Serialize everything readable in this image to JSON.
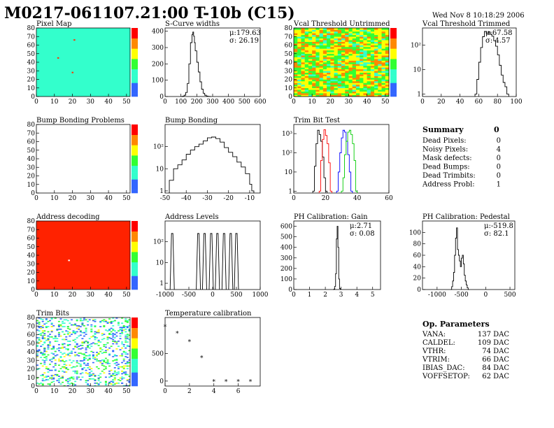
{
  "header": {
    "title": "M0217-061107.21:00 T-10b (C15)",
    "date": "Wed Nov  8 10:18:29 2006"
  },
  "summary": {
    "title": "Summary",
    "value": "0",
    "rows": [
      {
        "label": "Dead Pixels:",
        "value": "0"
      },
      {
        "label": "Noisy Pixels:",
        "value": "4"
      },
      {
        "label": "Mask defects:",
        "value": "0"
      },
      {
        "label": "Dead Bumps:",
        "value": "0"
      },
      {
        "label": "Dead Trimbits:",
        "value": "0"
      },
      {
        "label": "Address Probl:",
        "value": "1"
      }
    ]
  },
  "op_params": {
    "title": "Op. Parameters",
    "rows": [
      {
        "label": "VANA:",
        "value": "137 DAC"
      },
      {
        "label": "CALDEL:",
        "value": "109 DAC"
      },
      {
        "label": "VTHR:",
        "value": "74 DAC"
      },
      {
        "label": "VTRIM:",
        "value": "66 DAC"
      },
      {
        "label": "IBIAS_DAC:",
        "value": "84 DAC"
      },
      {
        "label": "VOFFSETOP:",
        "value": "62 DAC"
      }
    ]
  },
  "chart_data": [
    {
      "id": "pixel_map",
      "type": "heatmap",
      "title": "Pixel Map",
      "xlim": [
        0,
        52
      ],
      "ylim": [
        0,
        80
      ],
      "xticks": [
        "0",
        "10",
        "20",
        "30",
        "40",
        "50"
      ],
      "yticks": [
        "0",
        "10",
        "20",
        "30",
        "40",
        "50",
        "60",
        "70",
        "80"
      ],
      "fill": "#33ffcc",
      "colorbar": true,
      "palette": "rainbow",
      "points": [
        {
          "x": 21,
          "y": 66
        },
        {
          "x": 20,
          "y": 28
        },
        {
          "x": 12,
          "y": 45
        }
      ]
    },
    {
      "id": "scurve_widths",
      "type": "line",
      "title": "S-Curve widths",
      "xlim": [
        0,
        600
      ],
      "ylim": [
        0,
        420
      ],
      "xticks": [
        "0",
        "100",
        "200",
        "300",
        "400",
        "500",
        "600"
      ],
      "yticks": [
        "0",
        "100",
        "200",
        "300",
        "400"
      ],
      "stats": {
        "mu": "μ:179.63",
        "sigma": "σ: 26.19"
      },
      "x": [
        100,
        110,
        120,
        130,
        140,
        150,
        160,
        170,
        175,
        180,
        185,
        190,
        200,
        210,
        220,
        230,
        240,
        250,
        260,
        270,
        280
      ],
      "y": [
        0,
        2,
        8,
        25,
        80,
        200,
        330,
        380,
        395,
        370,
        330,
        280,
        210,
        150,
        90,
        45,
        20,
        8,
        3,
        1,
        0
      ]
    },
    {
      "id": "vcal_untrimmed",
      "type": "heatmap",
      "title": "Vcal Threshold Untrimmed",
      "xlim": [
        0,
        52
      ],
      "ylim": [
        0,
        80
      ],
      "xticks": [
        "0",
        "10",
        "20",
        "30",
        "40",
        "50"
      ],
      "yticks": [
        "0",
        "10",
        "20",
        "30",
        "40",
        "50",
        "60",
        "70",
        "80"
      ],
      "colorbar": true,
      "palette": "rainbow",
      "pattern": "noise"
    },
    {
      "id": "vcal_trimmed",
      "type": "line",
      "title": "Vcal Threshold Trimmed",
      "log": true,
      "xlim": [
        0,
        100
      ],
      "ylim": [
        0.8,
        500
      ],
      "xticks": [
        "0",
        "20",
        "40",
        "60",
        "80",
        "100"
      ],
      "yticks": [
        "1",
        "10",
        "10²"
      ],
      "stats": {
        "mu": "μ:67.58",
        "sigma": "σ: 4.57"
      },
      "x": [
        56,
        58,
        60,
        62,
        64,
        66,
        68,
        70,
        72,
        74,
        76,
        78,
        80,
        82,
        84,
        86,
        88,
        90
      ],
      "y": [
        1,
        4,
        20,
        80,
        220,
        360,
        300,
        350,
        280,
        230,
        150,
        90,
        40,
        15,
        6,
        3,
        2,
        1
      ]
    },
    {
      "id": "bump_problems",
      "type": "heatmap",
      "title": "Bump Bonding Problems",
      "xlim": [
        0,
        52
      ],
      "ylim": [
        0,
        80
      ],
      "xticks": [
        "0",
        "10",
        "20",
        "30",
        "40",
        "50"
      ],
      "yticks": [
        "0",
        "10",
        "20",
        "30",
        "40",
        "50",
        "60",
        "70",
        "80"
      ],
      "fill": "#ffffff",
      "colorbar": true,
      "palette": "rainbow"
    },
    {
      "id": "bump_bonding",
      "type": "line",
      "title": "Bump Bonding",
      "log": true,
      "xlim": [
        -50,
        -5
      ],
      "ylim": [
        0.8,
        1000
      ],
      "xticks": [
        "-50",
        "-40",
        "-30",
        "-20",
        "-10"
      ],
      "yticks": [
        "1",
        "10",
        "10²"
      ],
      "x": [
        -48,
        -46,
        -44,
        -42,
        -40,
        -38,
        -36,
        -34,
        -32,
        -30,
        -28,
        -26,
        -24,
        -22,
        -20,
        -18,
        -16,
        -14,
        -12,
        -10,
        -9
      ],
      "y": [
        3,
        10,
        15,
        25,
        45,
        70,
        100,
        130,
        180,
        250,
        270,
        230,
        160,
        90,
        55,
        35,
        20,
        12,
        6,
        2,
        1
      ]
    },
    {
      "id": "trim_bit_test",
      "type": "line",
      "title": "Trim Bit Test",
      "log": true,
      "xlim": [
        0,
        60
      ],
      "ylim": [
        0.8,
        3000
      ],
      "xticks": [
        "0",
        "20",
        "40",
        "60"
      ],
      "yticks": [
        "1",
        "10",
        "10²",
        "10³"
      ],
      "series": [
        {
          "color": "#000000",
          "x": [
            12,
            13,
            14,
            15,
            16,
            17,
            18,
            19,
            20
          ],
          "y": [
            1,
            20,
            300,
            1500,
            900,
            400,
            60,
            5,
            1
          ]
        },
        {
          "color": "#ff0000",
          "x": [
            16,
            17,
            18,
            19,
            20,
            21,
            22,
            23
          ],
          "y": [
            1,
            40,
            500,
            1600,
            800,
            300,
            30,
            1
          ]
        },
        {
          "color": "#0000ff",
          "x": [
            27,
            28,
            29,
            30,
            31,
            32,
            33,
            34,
            35,
            36
          ],
          "y": [
            1,
            10,
            100,
            600,
            1500,
            1200,
            400,
            80,
            10,
            1
          ]
        },
        {
          "color": "#00cc00",
          "x": [
            30,
            31,
            32,
            33,
            34,
            35,
            36,
            37,
            38,
            39
          ],
          "y": [
            1,
            5,
            80,
            400,
            1200,
            1500,
            900,
            300,
            40,
            1
          ]
        }
      ]
    },
    {
      "id": "address_decoding",
      "type": "heatmap",
      "title": "Address decoding",
      "xlim": [
        0,
        52
      ],
      "ylim": [
        0,
        80
      ],
      "xticks": [
        "0",
        "10",
        "20",
        "30",
        "40",
        "50"
      ],
      "yticks": [
        "0",
        "10",
        "20",
        "30",
        "40",
        "50",
        "60",
        "70",
        "80"
      ],
      "fill": "#ff2200",
      "colorbar": true,
      "palette": "rainbow",
      "points": [
        {
          "x": 18,
          "y": 34,
          "color": "#ffffff"
        }
      ]
    },
    {
      "id": "address_levels",
      "type": "line",
      "title": "Address Levels",
      "log": true,
      "xlim": [
        -1000,
        1000
      ],
      "ylim": [
        0.5,
        1000
      ],
      "xticks": [
        "-1000",
        "-500",
        "0",
        "500",
        "1000"
      ],
      "yticks": [
        "1",
        "10",
        "10²"
      ],
      "peaks": [
        -850,
        -300,
        -170,
        -30,
        100,
        240,
        380,
        500
      ],
      "peak_height": 250
    },
    {
      "id": "ph_gain",
      "type": "line",
      "title": "PH Calibration: Gain",
      "xlim": [
        0,
        5.5
      ],
      "ylim": [
        0,
        650
      ],
      "xticks": [
        "0",
        "1",
        "2",
        "3",
        "4",
        "5"
      ],
      "yticks": [
        "0",
        "100",
        "200",
        "300",
        "400",
        "500",
        "600"
      ],
      "stats": {
        "mu": "μ:2.71",
        "sigma": "σ: 0.08"
      },
      "x": [
        2.5,
        2.55,
        2.6,
        2.65,
        2.7,
        2.75,
        2.8,
        2.85,
        2.9,
        2.95
      ],
      "y": [
        0,
        5,
        30,
        150,
        480,
        600,
        400,
        100,
        10,
        0
      ]
    },
    {
      "id": "ph_pedestal",
      "type": "line",
      "title": "PH Calibration: Pedestal",
      "xlim": [
        -1300,
        600
      ],
      "ylim": [
        0,
        120
      ],
      "xticks": [
        "-1000",
        "-500",
        "0",
        "500"
      ],
      "yticks": [
        "0",
        "20",
        "40",
        "60",
        "80",
        "100"
      ],
      "stats": {
        "mu": "μ:-519.8",
        "sigma": "σ: 82.1"
      },
      "x": [
        -720,
        -700,
        -680,
        -660,
        -640,
        -620,
        -600,
        -580,
        -560,
        -540,
        -520,
        -500,
        -480,
        -460,
        -440,
        -420,
        -400,
        -380,
        -360
      ],
      "y": [
        0,
        5,
        15,
        30,
        60,
        90,
        108,
        70,
        60,
        50,
        40,
        55,
        60,
        45,
        25,
        15,
        8,
        3,
        0
      ]
    },
    {
      "id": "trim_bits",
      "type": "heatmap",
      "title": "Trim Bits",
      "xlim": [
        0,
        52
      ],
      "ylim": [
        0,
        80
      ],
      "xticks": [
        "0",
        "10",
        "20",
        "30",
        "40",
        "50"
      ],
      "yticks": [
        "0",
        "10",
        "20",
        "30",
        "40",
        "50",
        "60",
        "70",
        "80"
      ],
      "colorbar": true,
      "palette": "rainbow",
      "pattern": "sparse"
    },
    {
      "id": "temp_calib",
      "type": "scatter",
      "title": "Temperature calibration",
      "xlim": [
        0,
        7.8
      ],
      "ylim": [
        -90,
        1150
      ],
      "xticks": [
        "0",
        "2",
        "4",
        "6"
      ],
      "yticks": [
        "0",
        "500"
      ],
      "x": [
        0,
        1,
        2,
        3,
        4,
        5,
        6,
        7
      ],
      "y": [
        990,
        870,
        720,
        430,
        0,
        0,
        0,
        0
      ]
    }
  ]
}
